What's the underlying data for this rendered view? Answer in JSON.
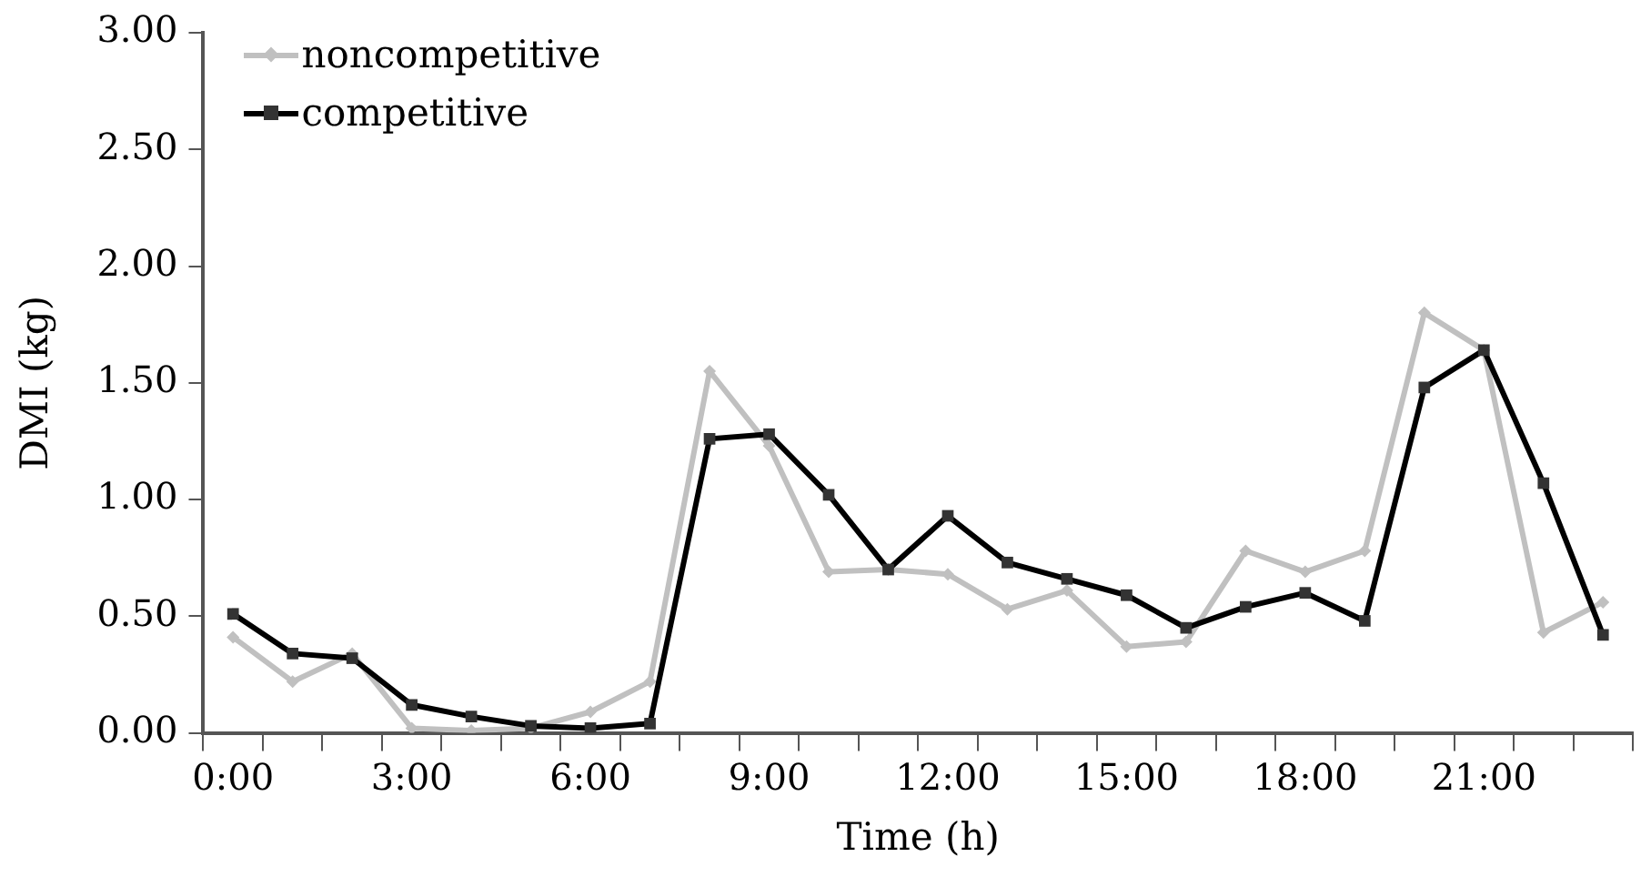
{
  "chart_data": {
    "type": "line",
    "xlabel": "Time (h)",
    "ylabel": "DMI (kg)",
    "categories": [
      "0:00",
      null,
      null,
      "3:00",
      null,
      null,
      "6:00",
      null,
      null,
      "9:00",
      null,
      null,
      "12:00",
      null,
      null,
      "15:00",
      null,
      null,
      "18:00",
      null,
      null,
      "21:00",
      null,
      null
    ],
    "series": [
      {
        "name": "noncompetitive",
        "color": "#c0c0c0",
        "marker": "diamond",
        "values": [
          0.41,
          0.22,
          0.34,
          0.02,
          0.01,
          0.02,
          0.09,
          0.22,
          1.55,
          1.23,
          0.69,
          0.7,
          0.68,
          0.53,
          0.61,
          0.37,
          0.39,
          0.78,
          0.69,
          0.78,
          1.8,
          1.64,
          0.43,
          0.56
        ]
      },
      {
        "name": "competitive",
        "color": "#000000",
        "marker": "square",
        "values": [
          0.51,
          0.34,
          0.32,
          0.12,
          0.07,
          0.03,
          0.02,
          0.04,
          1.26,
          1.28,
          1.02,
          0.7,
          0.93,
          0.73,
          0.66,
          0.59,
          0.45,
          0.54,
          0.6,
          0.48,
          1.48,
          1.64,
          1.07,
          0.42
        ]
      }
    ],
    "ylim": [
      0,
      3
    ],
    "yticks": [
      {
        "value": 0,
        "label": "0.00"
      },
      {
        "value": 0.5,
        "label": "0.50"
      },
      {
        "value": 1,
        "label": "1.00"
      },
      {
        "value": 1.5,
        "label": "1.50"
      },
      {
        "value": 2,
        "label": "2.00"
      },
      {
        "value": 2.5,
        "label": "2.50"
      },
      {
        "value": 3,
        "label": "3.00"
      }
    ],
    "grid": false,
    "legend": "top left",
    "line_style": "solid"
  }
}
